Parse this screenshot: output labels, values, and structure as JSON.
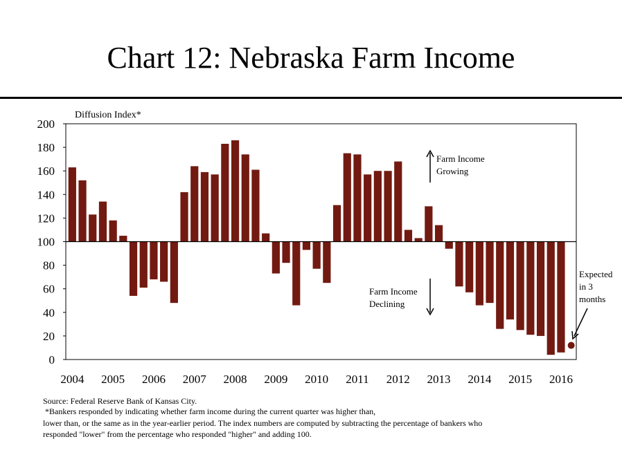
{
  "title": "Chart 12: Nebraska Farm Income",
  "colors": {
    "bar": "#721a11",
    "axis": "#000000"
  },
  "chart_data": {
    "type": "bar",
    "ylabel": "Diffusion Index*",
    "ylim": [
      0,
      200
    ],
    "yticks": [
      "0",
      "20",
      "40",
      "60",
      "80",
      "100",
      "120",
      "140",
      "160",
      "180",
      "200"
    ],
    "baseline": 100,
    "grid": false,
    "x_tick_labels": [
      "2004",
      "2005",
      "2006",
      "2007",
      "2008",
      "2009",
      "2010",
      "2011",
      "2012",
      "2013",
      "2014",
      "2015",
      "2016"
    ],
    "bars_per_year": 4,
    "values": [
      163,
      152,
      123,
      134,
      118,
      105,
      54,
      61,
      68,
      66,
      48,
      142,
      164,
      159,
      157,
      183,
      186,
      174,
      161,
      107,
      73,
      82,
      46,
      93,
      77,
      65,
      131,
      175,
      174,
      157,
      160,
      160,
      168,
      110,
      103,
      130,
      114,
      94,
      62,
      57,
      46,
      48,
      26,
      34,
      25,
      21,
      20,
      4,
      6
    ],
    "expected": {
      "value": 12,
      "label": [
        "Expected",
        "in 3",
        "months"
      ]
    },
    "annotations": {
      "growing": [
        "Farm Income",
        "Growing"
      ],
      "declining": [
        "Farm Income",
        "Declining"
      ]
    }
  },
  "notes": {
    "source": "Source: Federal Reserve Bank of Kansas City.",
    "line1": "*Bankers responded by indicating whether farm income during the current quarter was higher than,",
    "line2": "lower than, or the same as in the year-earlier period.  The index numbers are computed by subtracting the percentage of bankers who",
    "line3": "responded \"lower\" from the percentage who responded \"higher\" and adding 100."
  }
}
